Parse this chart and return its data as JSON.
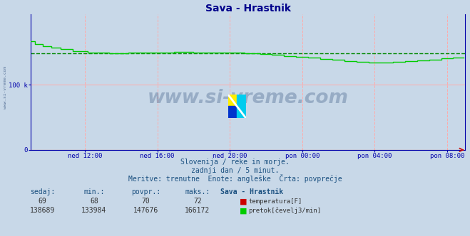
{
  "title": "Sava - Hrastnik",
  "title_color": "#00008B",
  "bg_color": "#c8d8e8",
  "plot_bg_color": "#c8d8e8",
  "xlim": [
    0,
    288
  ],
  "ylim": [
    0,
    208000
  ],
  "yticks": [
    0,
    100000
  ],
  "ytick_labels": [
    "0",
    "100 k"
  ],
  "xtick_positions": [
    36,
    84,
    132,
    180,
    228,
    276
  ],
  "xtick_labels": [
    "ned 12:00",
    "ned 16:00",
    "ned 20:00",
    "pon 00:00",
    "pon 04:00",
    "pon 08:00"
  ],
  "temp_color": "#cc0000",
  "flow_color": "#00cc00",
  "avg_color": "#008800",
  "avg_value": 147676,
  "watermark": "www.si-vreme.com",
  "watermark_color": "#1a3a6b",
  "left_text": "www.si-vreme.com",
  "subtitle1": "Slovenija / reke in morje.",
  "subtitle2": "zadnji dan / 5 minut.",
  "subtitle3": "Meritve: trenutne  Enote: angleške  Črta: povprečje",
  "subtitle_color": "#1a5080",
  "table_headers": [
    "sedaj:",
    "min.:",
    "povpr.:",
    "maks.:",
    "Sava - Hrastnik"
  ],
  "table_row1": [
    "69",
    "68",
    "70",
    "72"
  ],
  "table_row2": [
    "138689",
    "133984",
    "147676",
    "166172"
  ],
  "legend1": "temperatura[F]",
  "legend2": "pretok[čevelj3/min]",
  "grid_color_v": "#ffaaaa",
  "grid_color_h": "#ffaaaa",
  "axis_color": "#0000aa",
  "arrow_color": "#cc0000"
}
